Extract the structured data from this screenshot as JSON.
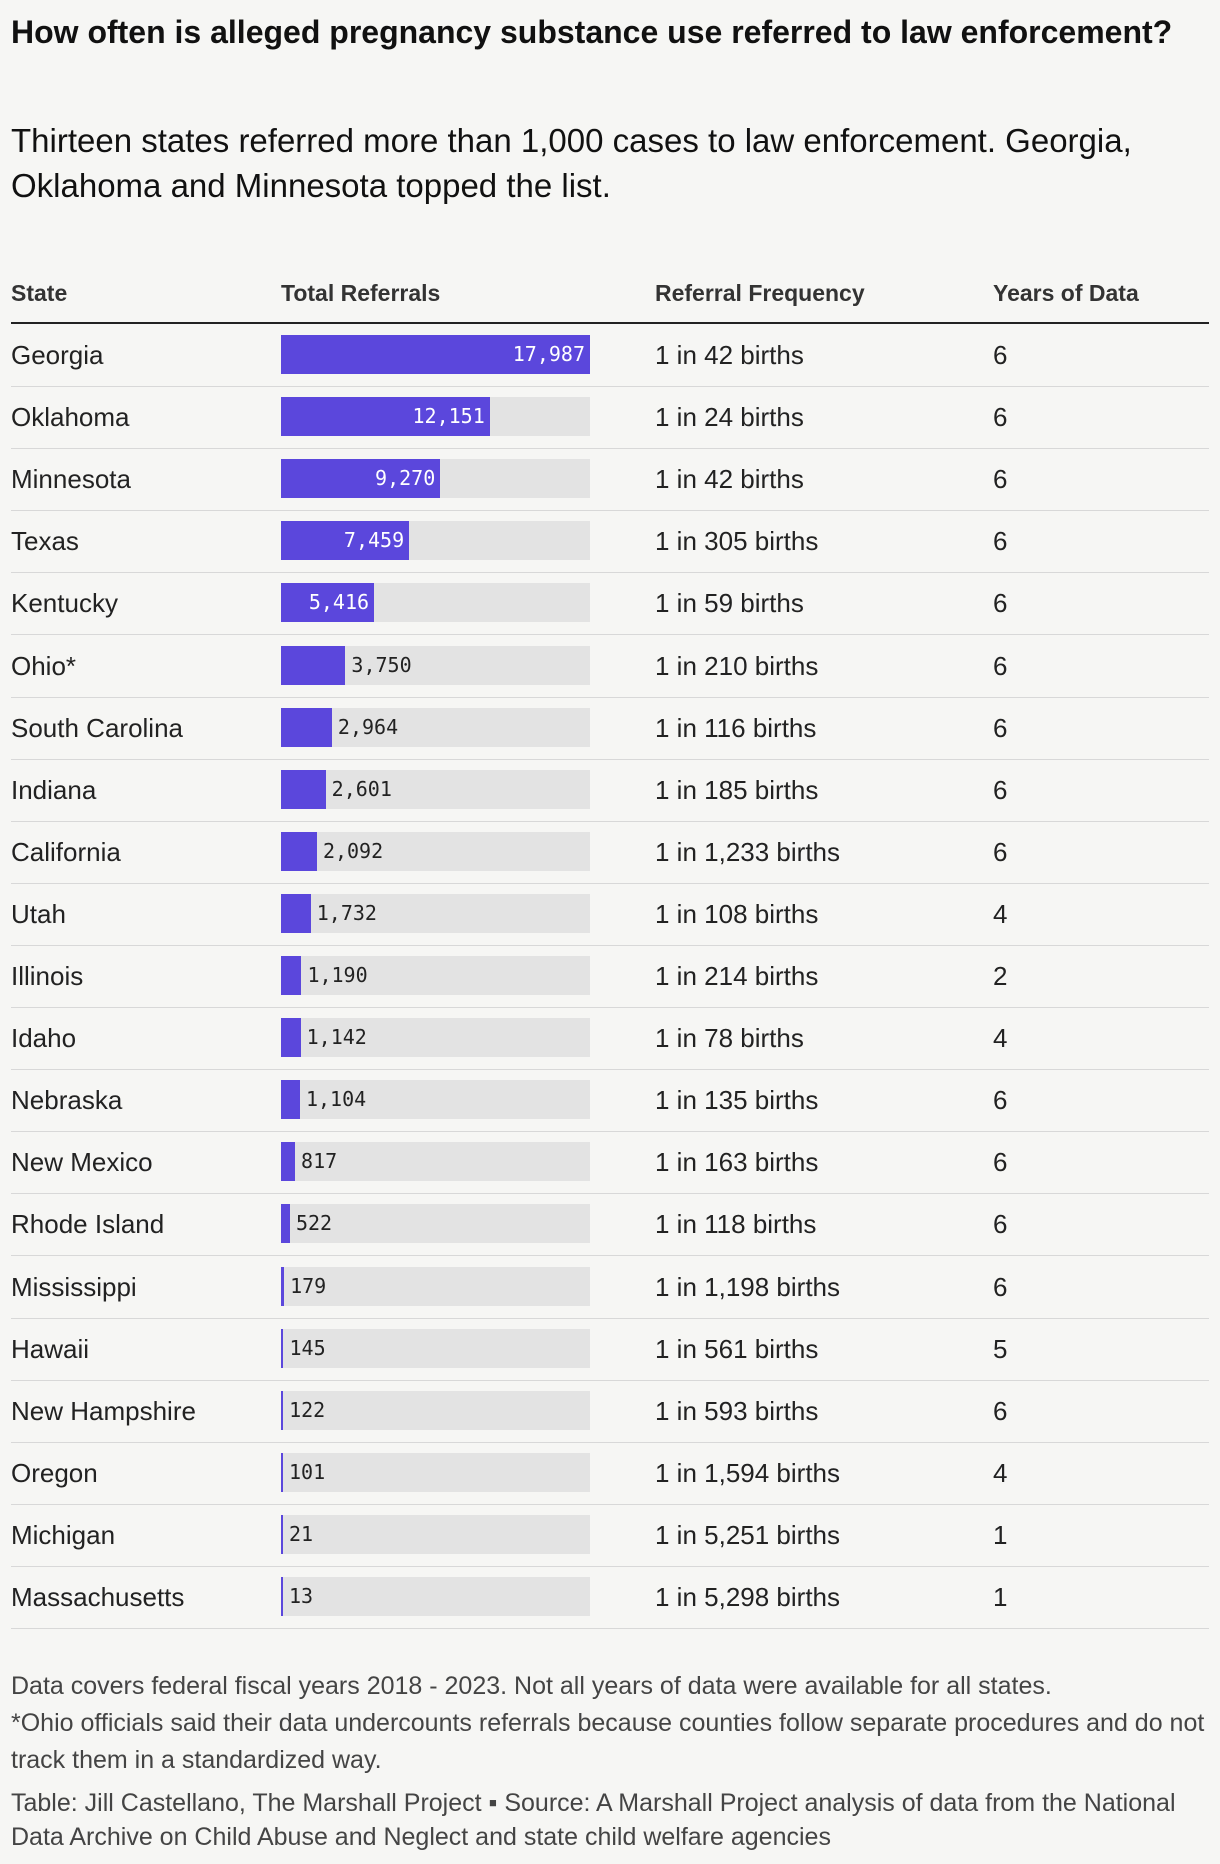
{
  "header": {
    "title": "How often is alleged pregnancy substance use referred to law enforcement?",
    "subtitle": "Thirteen states referred more than 1,000 cases to law enforcement. Georgia, Oklahoma and Minnesota topped the list."
  },
  "table": {
    "columns": [
      "State",
      "Total Referrals",
      "Referral Frequency",
      "Years of Data"
    ],
    "bar_color": "#5b47dc",
    "rows": [
      {
        "state": "Georgia",
        "referrals": {
          "value": 17987,
          "label": "17,987"
        },
        "frequency": "1 in 42 births",
        "years": 6
      },
      {
        "state": "Oklahoma",
        "referrals": {
          "value": 12151,
          "label": "12,151"
        },
        "frequency": "1 in 24 births",
        "years": 6
      },
      {
        "state": "Minnesota",
        "referrals": {
          "value": 9270,
          "label": "9,270"
        },
        "frequency": "1 in 42 births",
        "years": 6
      },
      {
        "state": "Texas",
        "referrals": {
          "value": 7459,
          "label": "7,459"
        },
        "frequency": "1 in 305 births",
        "years": 6
      },
      {
        "state": "Kentucky",
        "referrals": {
          "value": 5416,
          "label": "5,416"
        },
        "frequency": "1 in 59 births",
        "years": 6
      },
      {
        "state": "Ohio*",
        "referrals": {
          "value": 3750,
          "label": "3,750"
        },
        "frequency": "1 in 210 births",
        "years": 6
      },
      {
        "state": "South Carolina",
        "referrals": {
          "value": 2964,
          "label": "2,964"
        },
        "frequency": "1 in 116 births",
        "years": 6
      },
      {
        "state": "Indiana",
        "referrals": {
          "value": 2601,
          "label": "2,601"
        },
        "frequency": "1 in 185 births",
        "years": 6
      },
      {
        "state": "California",
        "referrals": {
          "value": 2092,
          "label": "2,092"
        },
        "frequency": "1 in 1,233 births",
        "years": 6
      },
      {
        "state": "Utah",
        "referrals": {
          "value": 1732,
          "label": "1,732"
        },
        "frequency": "1 in 108 births",
        "years": 4
      },
      {
        "state": "Illinois",
        "referrals": {
          "value": 1190,
          "label": "1,190"
        },
        "frequency": "1 in 214 births",
        "years": 2
      },
      {
        "state": "Idaho",
        "referrals": {
          "value": 1142,
          "label": "1,142"
        },
        "frequency": "1 in 78 births",
        "years": 4
      },
      {
        "state": "Nebraska",
        "referrals": {
          "value": 1104,
          "label": "1,104"
        },
        "frequency": "1 in 135 births",
        "years": 6
      },
      {
        "state": "New Mexico",
        "referrals": {
          "value": 817,
          "label": "817"
        },
        "frequency": "1 in 163 births",
        "years": 6
      },
      {
        "state": "Rhode Island",
        "referrals": {
          "value": 522,
          "label": "522"
        },
        "frequency": "1 in 118 births",
        "years": 6
      },
      {
        "state": "Mississippi",
        "referrals": {
          "value": 179,
          "label": "179"
        },
        "frequency": "1 in 1,198 births",
        "years": 6
      },
      {
        "state": "Hawaii",
        "referrals": {
          "value": 145,
          "label": "145"
        },
        "frequency": "1 in 561 births",
        "years": 5
      },
      {
        "state": "New Hampshire",
        "referrals": {
          "value": 122,
          "label": "122"
        },
        "frequency": "1 in 593 births",
        "years": 6
      },
      {
        "state": "Oregon",
        "referrals": {
          "value": 101,
          "label": "101"
        },
        "frequency": "1 in 1,594 births",
        "years": 4
      },
      {
        "state": "Michigan",
        "referrals": {
          "value": 21,
          "label": "21"
        },
        "frequency": "1 in 5,251 births",
        "years": 1
      },
      {
        "state": "Massachusetts",
        "referrals": {
          "value": 13,
          "label": "13"
        },
        "frequency": "1 in 5,298 births",
        "years": 1
      }
    ]
  },
  "footer": {
    "notes": [
      "Data covers federal fiscal years 2018 - 2023. Not all years of data were available for all states.",
      "*Ohio officials said their data undercounts referrals because counties follow separate procedures and do not track them in a standardized way."
    ],
    "source": "Table: Jill Castellano, The Marshall Project ▪ Source: A Marshall Project analysis of data from the National Data Archive on Child Abuse and Neglect and state child welfare agencies"
  }
}
